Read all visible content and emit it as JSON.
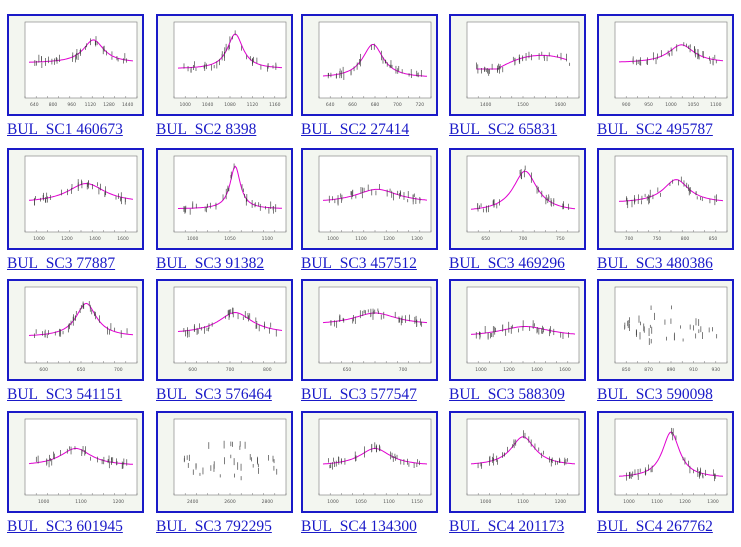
{
  "gallery": {
    "items": [
      {
        "label": "BUL_SC1 460673",
        "shape": "peak",
        "peak_x": 0.62,
        "width": 0.12,
        "height": 0.7,
        "base": 0.45,
        "axis_labels": [
          "640",
          "800",
          "960",
          "1120",
          "1280",
          "1440"
        ],
        "curve_color": "#e000d0"
      },
      {
        "label": "BUL_SC2 8398",
        "shape": "peak",
        "peak_x": 0.55,
        "width": 0.09,
        "height": 0.9,
        "base": 0.35,
        "axis_labels": [
          "1000",
          "1040",
          "1080",
          "1120",
          "1160"
        ],
        "curve_color": "#e000d0"
      },
      {
        "label": "BUL_SC2 27414",
        "shape": "peak",
        "peak_x": 0.48,
        "width": 0.12,
        "height": 0.7,
        "base": 0.2,
        "axis_labels": [
          "640",
          "660",
          "680",
          "700",
          "720"
        ],
        "curve_color": "#e000d0"
      },
      {
        "label": "BUL_SC2 65831",
        "shape": "arc",
        "peak_x": 0.68,
        "width": 0.3,
        "height": 0.35,
        "base": 0.35,
        "axis_labels": [
          "1400",
          "1500",
          "1600"
        ],
        "curve_color": "#e000d0"
      },
      {
        "label": "BUL_SC2 495787",
        "shape": "peak",
        "peak_x": 0.6,
        "width": 0.15,
        "height": 0.55,
        "base": 0.45,
        "axis_labels": [
          "900",
          "950",
          "1000",
          "1050",
          "1100"
        ],
        "curve_color": "#e000d0"
      },
      {
        "label": "BUL_SC3 77887",
        "shape": "peak",
        "peak_x": 0.55,
        "width": 0.22,
        "height": 0.5,
        "base": 0.35,
        "axis_labels": [
          "1000",
          "1200",
          "1400",
          "1600"
        ],
        "curve_color": "#e000d0"
      },
      {
        "label": "BUL_SC3 91382",
        "shape": "peak",
        "peak_x": 0.55,
        "width": 0.06,
        "height": 0.95,
        "base": 0.25,
        "axis_labels": [
          "1000",
          "1050",
          "1100"
        ],
        "curve_color": "#e000d0"
      },
      {
        "label": "BUL_SC3 457512",
        "shape": "peak",
        "peak_x": 0.52,
        "width": 0.25,
        "height": 0.35,
        "base": 0.35,
        "axis_labels": [
          "1000",
          "1100",
          "1200",
          "1300"
        ],
        "curve_color": "#e000d0"
      },
      {
        "label": "BUL_SC3 469296",
        "shape": "peak",
        "peak_x": 0.52,
        "width": 0.14,
        "height": 0.85,
        "base": 0.2,
        "axis_labels": [
          "650",
          "700",
          "750"
        ],
        "curve_color": "#e000d0"
      },
      {
        "label": "BUL_SC3 480386",
        "shape": "peak",
        "peak_x": 0.55,
        "width": 0.15,
        "height": 0.6,
        "base": 0.35,
        "axis_labels": [
          "700",
          "750",
          "800",
          "850"
        ],
        "curve_color": "#e000d0"
      },
      {
        "label": "BUL_SC3 541151",
        "shape": "peak",
        "peak_x": 0.55,
        "width": 0.12,
        "height": 0.8,
        "base": 0.3,
        "axis_labels": [
          "600",
          "650",
          "700"
        ],
        "curve_color": "#e000d0"
      },
      {
        "label": "BUL_SC3 576464",
        "shape": "peak",
        "peak_x": 0.55,
        "width": 0.2,
        "height": 0.55,
        "base": 0.35,
        "axis_labels": [
          "600",
          "700",
          "800"
        ],
        "curve_color": "#e000d0"
      },
      {
        "label": "BUL_SC3 577547",
        "shape": "peak",
        "peak_x": 0.5,
        "width": 0.25,
        "height": 0.4,
        "base": 0.5,
        "axis_labels": [
          "650",
          "700"
        ],
        "curve_color": "#e000d0"
      },
      {
        "label": "BUL_SC3 588309",
        "shape": "peak",
        "peak_x": 0.52,
        "width": 0.3,
        "height": 0.25,
        "base": 0.3,
        "axis_labels": [
          "1000",
          "1200",
          "1400",
          "1600"
        ],
        "curve_color": "#e000d0"
      },
      {
        "label": "BUL_SC3 590098",
        "shape": "scatter",
        "peak_x": 0.4,
        "width": 0.2,
        "height": 0.6,
        "base": 0.4,
        "axis_labels": [
          "850",
          "870",
          "890",
          "910",
          "930"
        ],
        "curve_color": ""
      },
      {
        "label": "BUL_SC3 601945",
        "shape": "peak",
        "peak_x": 0.45,
        "width": 0.18,
        "height": 0.45,
        "base": 0.35,
        "axis_labels": [
          "1000",
          "1100",
          "1200"
        ],
        "curve_color": "#e000d0"
      },
      {
        "label": "BUL_SC3 792295",
        "shape": "scatter",
        "peak_x": 0.6,
        "width": 0.25,
        "height": 0.6,
        "base": 0.3,
        "axis_labels": [
          "2400",
          "2600",
          "2800"
        ],
        "curve_color": ""
      },
      {
        "label": "BUL_SC4 134300",
        "shape": "peak",
        "peak_x": 0.5,
        "width": 0.18,
        "height": 0.45,
        "base": 0.35,
        "axis_labels": [
          "1000",
          "1050",
          "1100",
          "1150"
        ],
        "curve_color": "#e000d0"
      },
      {
        "label": "BUL_SC4 201173",
        "shape": "peak",
        "peak_x": 0.5,
        "width": 0.14,
        "height": 0.75,
        "base": 0.35,
        "axis_labels": [
          "1000",
          "1100",
          "1200"
        ],
        "curve_color": "#e000d0"
      },
      {
        "label": "BUL_SC4 267762",
        "shape": "peak",
        "peak_x": 0.5,
        "width": 0.1,
        "height": 0.9,
        "base": 0.15,
        "axis_labels": [
          "1000",
          "1100",
          "1200",
          "1300"
        ],
        "curve_color": "#e000d0"
      }
    ]
  }
}
